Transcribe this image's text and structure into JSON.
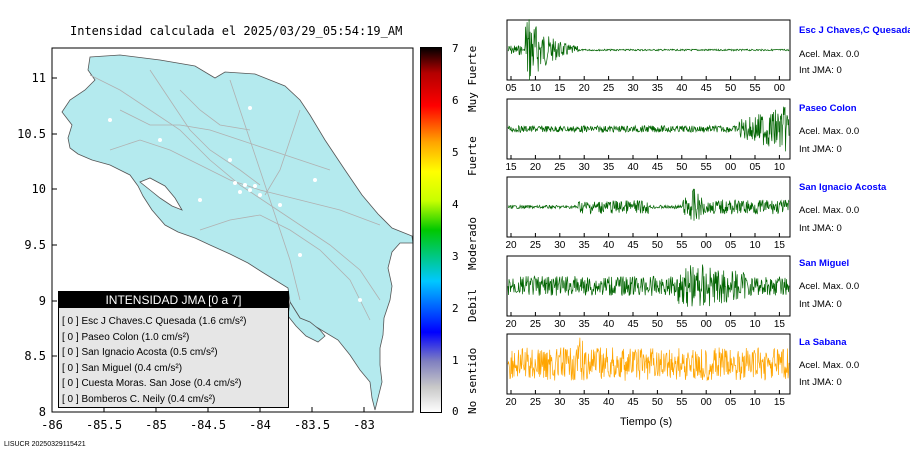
{
  "map": {
    "title": "Intensidad calculada el 2025/03/29_05:54:19_AM",
    "xticks": [
      "-86",
      "-85.5",
      "-85",
      "-84.5",
      "-84",
      "-83.5",
      "-83"
    ],
    "yticks": [
      "11",
      "10.5",
      "10",
      "9.5",
      "9",
      "8.5",
      "8"
    ],
    "legend_title": "INTENSIDAD JMA [0 a 7]",
    "legend_items": [
      "[ 0 ]  Esc J Chaves.C Quesada (1.6 cm/s²)",
      "[ 0 ]  Paseo Colon (1.0 cm/s²)",
      "[ 0 ]  San Ignacio Acosta (0.5 cm/s²)",
      "[ 0 ]  San Miguel (0.4 cm/s²)",
      "[ 0 ]  Cuesta Moras. San Jose (0.4 cm/s²)",
      "[ 0 ]  Bomberos C. Neily (0.4 cm/s²)"
    ],
    "land_color": "#b4eaee",
    "road_color": "#b0b0b0"
  },
  "colorbar": {
    "ticks": [
      "7",
      "6",
      "5",
      "4",
      "3",
      "2",
      "1",
      "0"
    ],
    "labels": [
      "Muy Fuerte",
      "Fuerte",
      "Moderado",
      "Debil",
      "No sentido"
    ]
  },
  "waveforms": {
    "x_axis_title": "Tiempo (s)",
    "footer": "LISUCR 20250329115421",
    "traces": [
      {
        "name": "Esc J Chaves,C Quesada",
        "acel": "Acel. Max. 0.0",
        "jma": "Int JMA: 0",
        "color": "#006400",
        "ticks": [
          "05",
          "10",
          "15",
          "20",
          "25",
          "30",
          "35",
          "40",
          "45",
          "50",
          "55",
          "00"
        ]
      },
      {
        "name": "Paseo Colon",
        "acel": "Acel. Max. 0.0",
        "jma": "Int JMA: 0",
        "color": "#006400",
        "ticks": [
          "15",
          "20",
          "25",
          "30",
          "35",
          "40",
          "45",
          "50",
          "55",
          "00",
          "05",
          "10"
        ]
      },
      {
        "name": "San Ignacio Acosta",
        "acel": "Acel. Max. 0.0",
        "jma": "Int JMA: 0",
        "color": "#006400",
        "ticks": [
          "20",
          "25",
          "30",
          "35",
          "40",
          "45",
          "50",
          "55",
          "00",
          "05",
          "10",
          "15"
        ]
      },
      {
        "name": "San Miguel",
        "acel": "Acel. Max. 0.0",
        "jma": "Int JMA: 0",
        "color": "#006400",
        "ticks": [
          "20",
          "25",
          "30",
          "35",
          "40",
          "45",
          "50",
          "55",
          "00",
          "05",
          "10",
          "15"
        ]
      },
      {
        "name": "La Sabana",
        "acel": "Acel. Max. 0.0",
        "jma": "Int JMA: 0",
        "color": "#ffa500",
        "ticks": [
          "20",
          "25",
          "30",
          "35",
          "40",
          "45",
          "50",
          "55",
          "00",
          "05",
          "10",
          "15"
        ]
      }
    ]
  },
  "chart_data": [
    {
      "type": "scatter",
      "title": "Intensidad calculada el 2025/03/29_05:54:19_AM",
      "xlim": [
        -86,
        -82.6
      ],
      "ylim": [
        8,
        11.3
      ],
      "xticks": [
        -86,
        -85.5,
        -85,
        -84.5,
        -84,
        -83.5,
        -83
      ],
      "yticks": [
        8,
        8.5,
        9,
        9.5,
        10,
        10.5,
        11
      ],
      "legend_title": "INTENSIDAD JMA [0 a 7]",
      "legend_placement": "bottom-left",
      "stations": [
        {
          "name": "Esc J Chaves.C Quesada",
          "intensity": 0,
          "acel_cm_s2": 1.6
        },
        {
          "name": "Paseo Colon",
          "intensity": 0,
          "acel_cm_s2": 1.0
        },
        {
          "name": "San Ignacio Acosta",
          "intensity": 0,
          "acel_cm_s2": 0.5
        },
        {
          "name": "San Miguel",
          "intensity": 0,
          "acel_cm_s2": 0.4
        },
        {
          "name": "Cuesta Moras. San Jose",
          "intensity": 0,
          "acel_cm_s2": 0.4
        },
        {
          "name": "Bomberos C. Neily",
          "intensity": 0,
          "acel_cm_s2": 0.4
        }
      ],
      "colorbar": {
        "min": 0,
        "max": 7,
        "labels": [
          "No sentido",
          "Debil",
          "Moderado",
          "Fuerte",
          "Muy Fuerte"
        ]
      }
    },
    {
      "type": "line",
      "xlabel": "Tiempo (s)",
      "series": [
        {
          "name": "Esc J Chaves,C Quesada",
          "acel_max": 0.0,
          "int_jma": 0
        },
        {
          "name": "Paseo Colon",
          "acel_max": 0.0,
          "int_jma": 0
        },
        {
          "name": "San Ignacio Acosta",
          "acel_max": 0.0,
          "int_jma": 0
        },
        {
          "name": "San Miguel",
          "acel_max": 0.0,
          "int_jma": 0
        },
        {
          "name": "La Sabana",
          "acel_max": 0.0,
          "int_jma": 0
        }
      ]
    }
  ]
}
